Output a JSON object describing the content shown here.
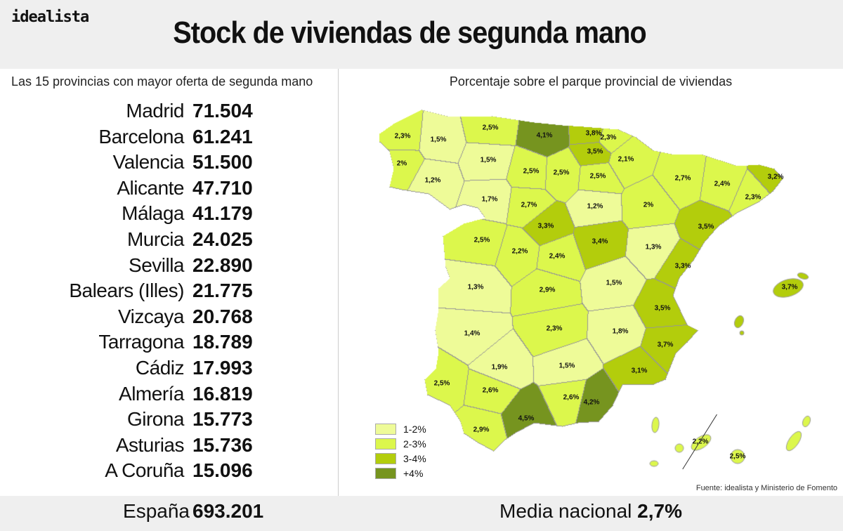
{
  "brand": "idealista",
  "title": "Stock de viviendas de segunda mano",
  "left": {
    "subtitle": "Las 15 provincias con mayor oferta de segunda mano",
    "rows": [
      {
        "name": "Madrid",
        "value": "71.504"
      },
      {
        "name": "Barcelona",
        "value": "61.241"
      },
      {
        "name": "Valencia",
        "value": "51.500"
      },
      {
        "name": "Alicante",
        "value": "47.710"
      },
      {
        "name": "Málaga",
        "value": "41.179"
      },
      {
        "name": "Murcia",
        "value": "24.025"
      },
      {
        "name": "Sevilla",
        "value": "22.890"
      },
      {
        "name": "Balears (Illes)",
        "value": "21.775"
      },
      {
        "name": "Vizcaya",
        "value": "20.768"
      },
      {
        "name": "Tarragona",
        "value": "18.789"
      },
      {
        "name": "Cádiz",
        "value": "17.993"
      },
      {
        "name": "Almería",
        "value": "16.819"
      },
      {
        "name": "Girona",
        "value": "15.773"
      },
      {
        "name": "Asturias",
        "value": "15.736"
      },
      {
        "name": "A Coruña",
        "value": "15.096"
      }
    ],
    "total_label": "España",
    "total_value": "693.201"
  },
  "right": {
    "subtitle": "Porcentaje sobre el parque provincial de viviendas",
    "media_label": "Media nacional",
    "media_value": "2,7%",
    "source": "Fuente: idealista y Ministerio de Fomento"
  },
  "legend": [
    {
      "label": "1-2%",
      "color": "#eefb98"
    },
    {
      "label": "2-3%",
      "color": "#dcf74c"
    },
    {
      "label": "3-4%",
      "color": "#b3cd0c"
    },
    {
      "label": "+4%",
      "color": "#76941f"
    }
  ],
  "provinces": [
    {
      "label": "2,3%",
      "v": 2.3
    },
    {
      "label": "1,5%",
      "v": 1.5
    },
    {
      "label": "2,5%",
      "v": 2.5
    },
    {
      "label": "4,1%",
      "v": 4.1
    },
    {
      "label": "3,8%",
      "v": 3.8
    },
    {
      "label": "2,3%",
      "v": 2.3
    },
    {
      "label": "3,5%",
      "v": 3.5
    },
    {
      "label": "2,1%",
      "v": 2.1
    },
    {
      "label": "2,7%",
      "v": 2.7
    },
    {
      "label": "2,4%",
      "v": 2.4
    },
    {
      "label": "3,2%",
      "v": 3.2
    },
    {
      "label": "2,3%",
      "v": 2.3
    },
    {
      "label": "2%",
      "v": 2.0
    },
    {
      "label": "1,2%",
      "v": 1.2
    },
    {
      "label": "1,5%",
      "v": 1.5
    },
    {
      "label": "2,5%",
      "v": 2.5
    },
    {
      "label": "2,5%",
      "v": 2.5
    },
    {
      "label": "2,5%",
      "v": 2.5
    },
    {
      "label": "1,7%",
      "v": 1.7
    },
    {
      "label": "2,7%",
      "v": 2.7
    },
    {
      "label": "1,2%",
      "v": 1.2
    },
    {
      "label": "2%",
      "v": 2.0
    },
    {
      "label": "3,5%",
      "v": 3.5
    },
    {
      "label": "3,3%",
      "v": 3.3
    },
    {
      "label": "3,4%",
      "v": 3.4
    },
    {
      "label": "1,3%",
      "v": 1.3
    },
    {
      "label": "3,3%",
      "v": 3.3
    },
    {
      "label": "2,5%",
      "v": 2.5
    },
    {
      "label": "2,2%",
      "v": 2.2
    },
    {
      "label": "2,4%",
      "v": 2.4
    },
    {
      "label": "1,3%",
      "v": 1.3
    },
    {
      "label": "2,9%",
      "v": 2.9
    },
    {
      "label": "1,5%",
      "v": 1.5
    },
    {
      "label": "3,5%",
      "v": 3.5
    },
    {
      "label": "1,4%",
      "v": 1.4
    },
    {
      "label": "2,3%",
      "v": 2.3
    },
    {
      "label": "1,8%",
      "v": 1.8
    },
    {
      "label": "3,7%",
      "v": 3.7
    },
    {
      "label": "2,5%",
      "v": 2.5
    },
    {
      "label": "2,6%",
      "v": 2.6
    },
    {
      "label": "1,9%",
      "v": 1.9
    },
    {
      "label": "1,5%",
      "v": 1.5
    },
    {
      "label": "2,6%",
      "v": 2.6
    },
    {
      "label": "3,1%",
      "v": 3.1
    },
    {
      "label": "4,2%",
      "v": 4.2
    },
    {
      "label": "4,5%",
      "v": 4.5
    },
    {
      "label": "2,9%",
      "v": 2.9
    },
    {
      "label": "3,7%",
      "v": 3.7
    },
    {
      "label": "2,2%",
      "v": 2.2
    },
    {
      "label": "2,5%",
      "v": 2.5
    }
  ]
}
